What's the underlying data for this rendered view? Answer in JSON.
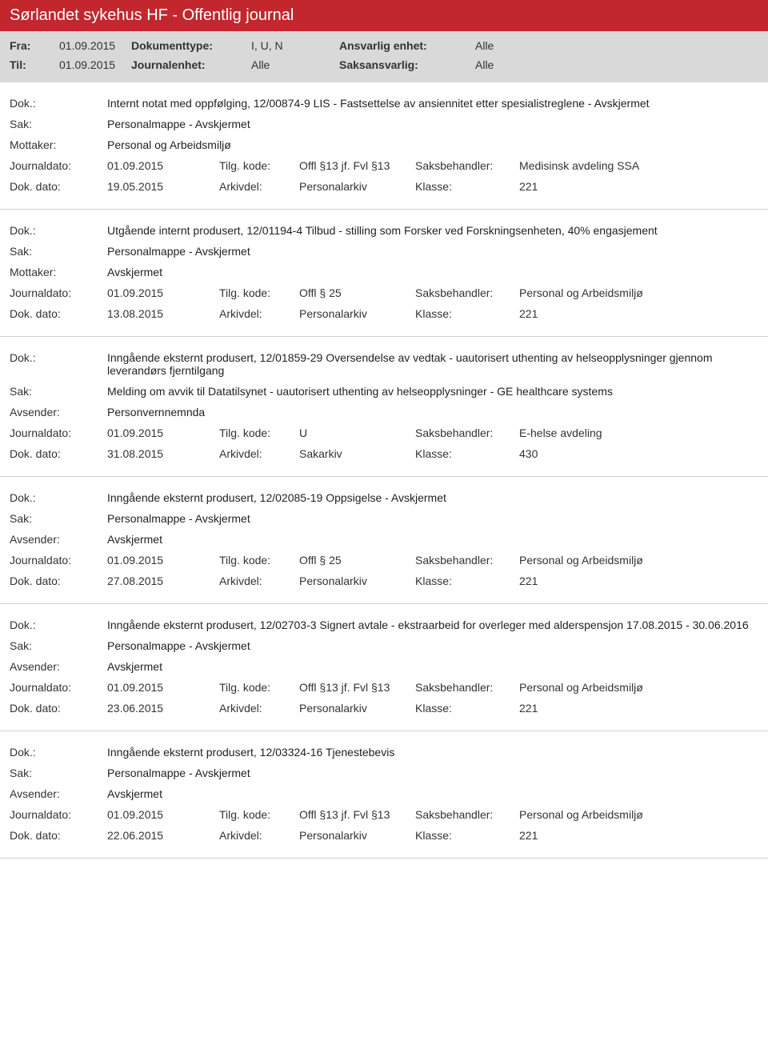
{
  "header": {
    "title": "Sørlandet sykehus HF - Offentlig journal",
    "fra_label": "Fra:",
    "fra_value": "01.09.2015",
    "til_label": "Til:",
    "til_value": "01.09.2015",
    "doktype_label": "Dokumenttype:",
    "doktype_value": "I, U, N",
    "journalenhet_label": "Journalenhet:",
    "journalenhet_value": "Alle",
    "ansvarlig_label": "Ansvarlig enhet:",
    "ansvarlig_value": "Alle",
    "saksansvarlig_label": "Saksansvarlig:",
    "saksansvarlig_value": "Alle"
  },
  "labels": {
    "dok": "Dok.:",
    "sak": "Sak:",
    "mottaker": "Mottaker:",
    "avsender": "Avsender:",
    "journaldato": "Journaldato:",
    "dokdato": "Dok. dato:",
    "tilgkode": "Tilg. kode:",
    "arkivdel": "Arkivdel:",
    "saksbehandler": "Saksbehandler:",
    "klasse": "Klasse:"
  },
  "entries": [
    {
      "dok": "Internt notat med oppfølging, 12/00874-9 LIS - Fastsettelse av ansiennitet etter spesialistreglene - Avskjermet",
      "sak": "Personalmappe - Avskjermet",
      "party_label_key": "mottaker",
      "party_value": "Personal og Arbeidsmiljø",
      "journaldato": "01.09.2015",
      "tilgkode": "Offl §13 jf. Fvl §13",
      "saksbehandler": "Medisinsk avdeling SSA",
      "dokdato": "19.05.2015",
      "arkivdel": "Personalarkiv",
      "klasse": "221"
    },
    {
      "dok": "Utgående internt produsert, 12/01194-4 Tilbud - stilling som Forsker ved Forskningsenheten, 40% engasjement",
      "sak": "Personalmappe - Avskjermet",
      "party_label_key": "mottaker",
      "party_value": "Avskjermet",
      "journaldato": "01.09.2015",
      "tilgkode": "Offl § 25",
      "saksbehandler": "Personal og Arbeidsmiljø",
      "dokdato": "13.08.2015",
      "arkivdel": "Personalarkiv",
      "klasse": "221"
    },
    {
      "dok": "Inngående eksternt produsert, 12/01859-29 Oversendelse av vedtak - uautorisert uthenting av helseopplysninger gjennom leverandørs fjerntilgang",
      "sak": "Melding om avvik til Datatilsynet - uautorisert uthenting av helseopplysninger - GE healthcare systems",
      "party_label_key": "avsender",
      "party_value": "Personvernnemnda",
      "journaldato": "01.09.2015",
      "tilgkode": "U",
      "saksbehandler": "E-helse avdeling",
      "dokdato": "31.08.2015",
      "arkivdel": "Sakarkiv",
      "klasse": "430"
    },
    {
      "dok": "Inngående eksternt produsert, 12/02085-19 Oppsigelse - Avskjermet",
      "sak": "Personalmappe - Avskjermet",
      "party_label_key": "avsender",
      "party_value": "Avskjermet",
      "journaldato": "01.09.2015",
      "tilgkode": "Offl § 25",
      "saksbehandler": "Personal og Arbeidsmiljø",
      "dokdato": "27.08.2015",
      "arkivdel": "Personalarkiv",
      "klasse": "221"
    },
    {
      "dok": "Inngående eksternt produsert, 12/02703-3 Signert avtale - ekstraarbeid for overleger med alderspensjon 17.08.2015 - 30.06.2016",
      "sak": "Personalmappe - Avskjermet",
      "party_label_key": "avsender",
      "party_value": "Avskjermet",
      "journaldato": "01.09.2015",
      "tilgkode": "Offl §13 jf. Fvl §13",
      "saksbehandler": "Personal og Arbeidsmiljø",
      "dokdato": "23.06.2015",
      "arkivdel": "Personalarkiv",
      "klasse": "221"
    },
    {
      "dok": "Inngående eksternt produsert, 12/03324-16 Tjenestebevis",
      "sak": "Personalmappe - Avskjermet",
      "party_label_key": "avsender",
      "party_value": "Avskjermet",
      "journaldato": "01.09.2015",
      "tilgkode": "Offl §13 jf. Fvl §13",
      "saksbehandler": "Personal og Arbeidsmiljø",
      "dokdato": "22.06.2015",
      "arkivdel": "Personalarkiv",
      "klasse": "221"
    }
  ]
}
